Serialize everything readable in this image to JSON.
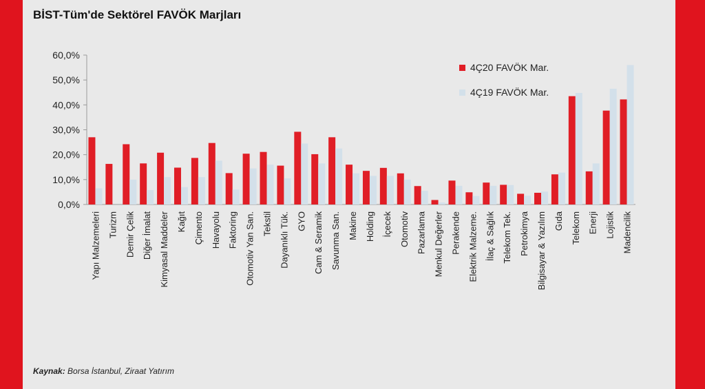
{
  "header": {
    "title": "BİST-Tüm'de Sektörel FAVÖK Marjları"
  },
  "footer": {
    "source_label": "Kaynak:",
    "source_text": "Borsa İstanbul, Ziraat Yatırım"
  },
  "colors": {
    "brand_red": "#e0141e",
    "series1": "#e01e26",
    "series2": "#d3e0ea",
    "panel": "#e9e9e9"
  },
  "chart_data": {
    "type": "bar",
    "title": "",
    "xlabel": "",
    "ylabel": "",
    "ylim": [
      0,
      60
    ],
    "yticks": [
      "0,0%",
      "10,0%",
      "20,0%",
      "30,0%",
      "40,0%",
      "50,0%",
      "60,0%"
    ],
    "ytick_values": [
      0,
      10,
      20,
      30,
      40,
      50,
      60
    ],
    "legend_position": "top-right",
    "grid": false,
    "categories": [
      "Yapı Malzemeleri",
      "Turizm",
      "Demir Çelik",
      "Diğer İmalat",
      "Kimyasal Maddeler",
      "Kağıt",
      "Çimento",
      "Havayolu",
      "Faktoring",
      "Otomotiv Yan San.",
      "Tekstil",
      "Dayanıklı Tük.",
      "GYO",
      "Cam & Seramik",
      "Savunma San.",
      "Makine",
      "Holding",
      "İçecek",
      "Otomotiv",
      "Pazarlama",
      "Menkul Değerler",
      "Perakende",
      "Elektrik Malzeme.",
      "İlaç & Sağlık",
      "Telekom Tek.",
      "Petrokimya",
      "Bilgisayar & Yazılım",
      "Gıda",
      "Telekom",
      "Enerji",
      "Lojistik",
      "Madencilik"
    ],
    "series": [
      {
        "name": "4Ç20 FAVÖK Mar.",
        "values": [
          27,
          16.3,
          24.2,
          16.5,
          20.8,
          14.8,
          18.7,
          24.7,
          12.6,
          20.4,
          21.1,
          15.6,
          29.2,
          20.2,
          27,
          16,
          13.5,
          14.7,
          12.5,
          7.4,
          1.8,
          9.6,
          4.9,
          8.8,
          7.9,
          4.3,
          4.7,
          12.1,
          43.5,
          13.3,
          37.7,
          42.2
        ]
      },
      {
        "name": "4Ç19 FAVÖK Mar.",
        "values": [
          6.5,
          0,
          10,
          5.8,
          11,
          7,
          11,
          17.6,
          6,
          14.5,
          16,
          10.5,
          24.5,
          16.5,
          22.5,
          12.5,
          11.5,
          11.5,
          10,
          5.5,
          0.8,
          7.5,
          3.4,
          7.5,
          7.8,
          3.5,
          5.2,
          12.8,
          44.8,
          16.5,
          46.5,
          56
        ]
      }
    ]
  }
}
